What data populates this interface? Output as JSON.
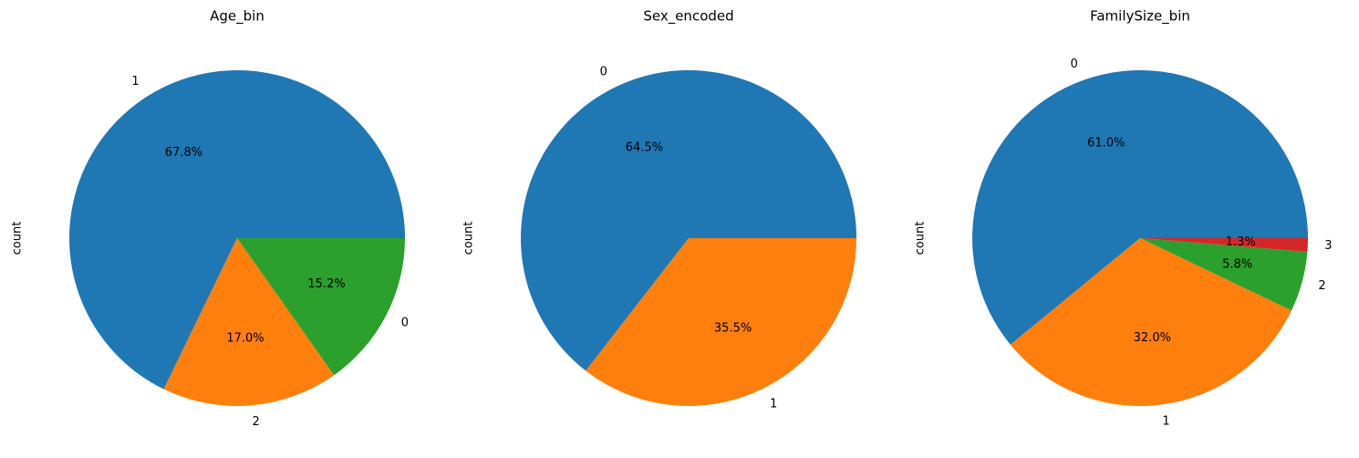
{
  "chart_data": [
    {
      "type": "pie",
      "title": "Age_bin",
      "ylabel": "count",
      "categories": [
        "1",
        "2",
        "0"
      ],
      "values": [
        67.8,
        17.0,
        15.2
      ],
      "value_labels": [
        "67.8%",
        "17.0%",
        "15.2%"
      ],
      "colors": [
        "#1f77b4",
        "#ff7f0e",
        "#2ca02c"
      ]
    },
    {
      "type": "pie",
      "title": "Sex_encoded",
      "ylabel": "count",
      "categories": [
        "0",
        "1"
      ],
      "values": [
        64.5,
        35.5
      ],
      "value_labels": [
        "64.5%",
        "35.5%"
      ],
      "colors": [
        "#1f77b4",
        "#ff7f0e"
      ]
    },
    {
      "type": "pie",
      "title": "FamilySize_bin",
      "ylabel": "count",
      "categories": [
        "0",
        "1",
        "2",
        "3"
      ],
      "values": [
        61.0,
        32.0,
        5.8,
        1.3
      ],
      "value_labels": [
        "61.0%",
        "32.0%",
        "5.8%",
        "1.3%"
      ],
      "colors": [
        "#1f77b4",
        "#ff7f0e",
        "#2ca02c",
        "#d62728"
      ]
    }
  ]
}
